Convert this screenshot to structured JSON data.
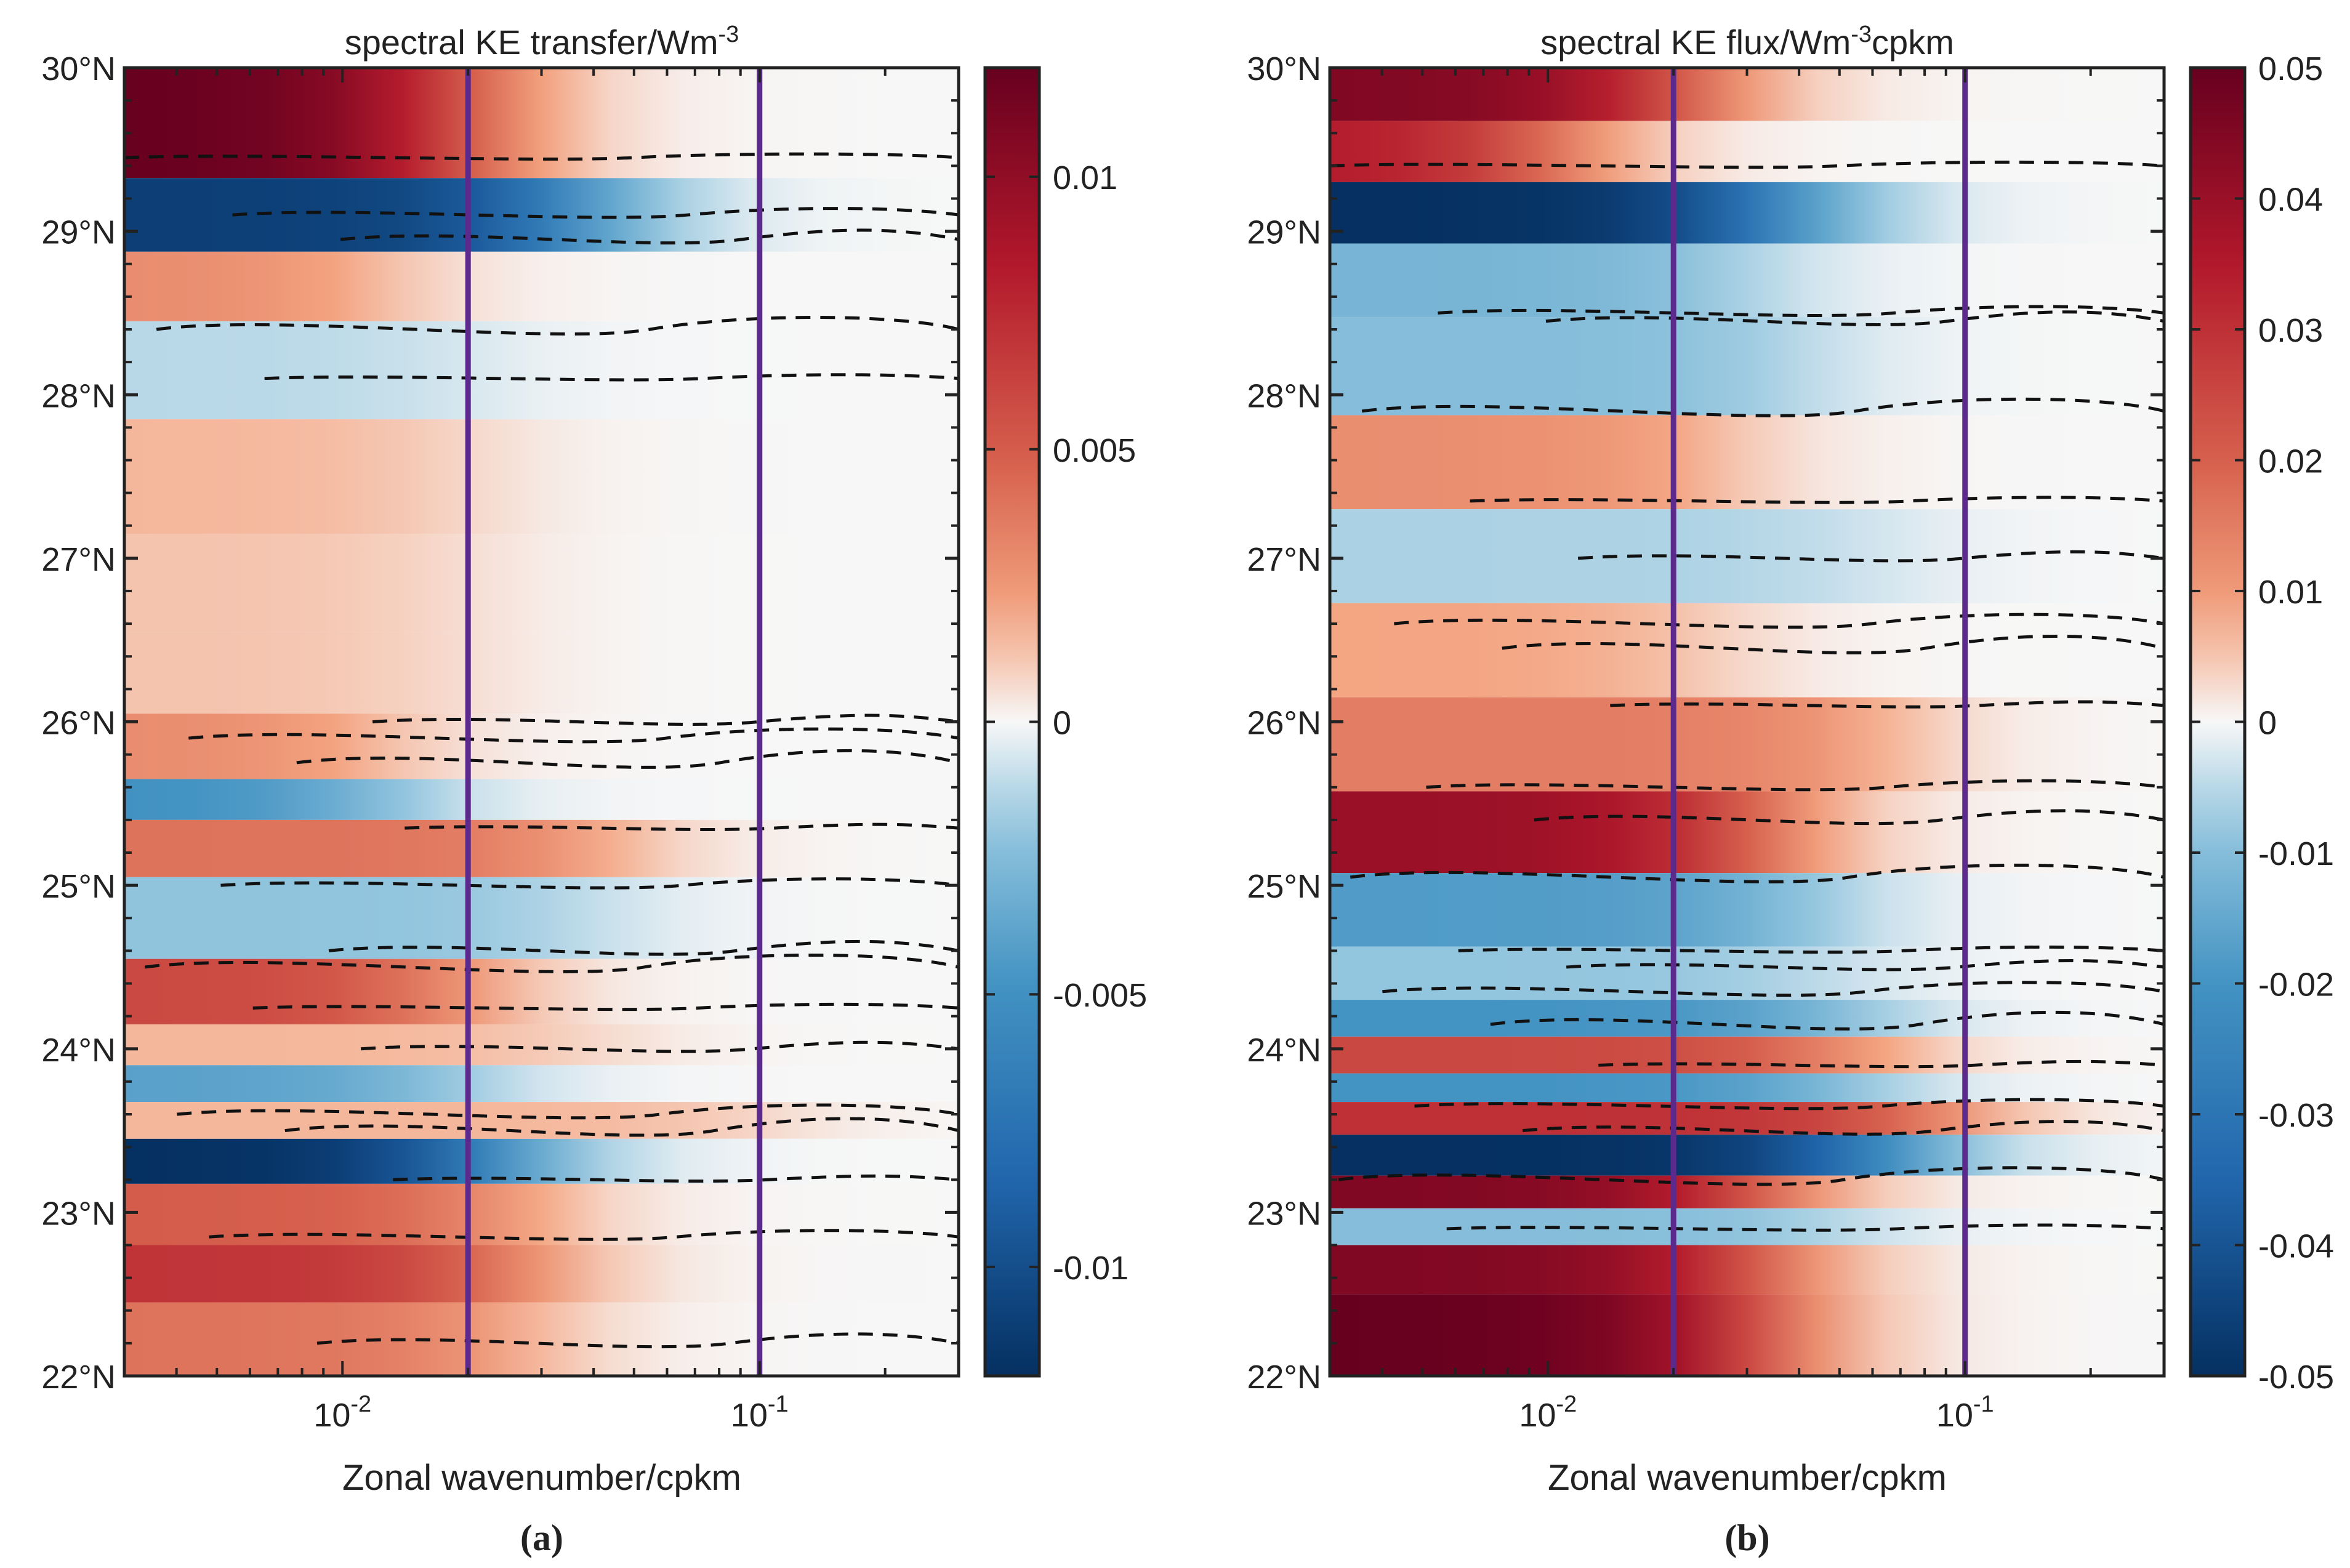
{
  "chart_data": [
    {
      "type": "heatmap",
      "panel_label": "(a)",
      "title": "spectral KE transfer/Wm",
      "title_exponent": "-3",
      "xlabel": "Zonal wavenumber/cpkm",
      "xscale": "log",
      "xlim": [
        0.003,
        0.3
      ],
      "x_ticks": [
        {
          "value": 0.01,
          "base": "10",
          "exp": "-2"
        },
        {
          "value": 0.1,
          "base": "10",
          "exp": "-1"
        }
      ],
      "ylim": [
        22,
        30
      ],
      "y_ticks": [
        "22°N",
        "23°N",
        "24°N",
        "25°N",
        "26°N",
        "27°N",
        "28°N",
        "29°N",
        "30°N"
      ],
      "colorbar": {
        "range": [
          -0.012,
          0.012
        ],
        "ticks": [
          0.01,
          0.005,
          0,
          -0.005,
          -0.01
        ],
        "tick_labels": [
          "0.01",
          "0.005",
          "0",
          "-0.005",
          "-0.01"
        ],
        "colormap": "blue-white-red"
      },
      "vertical_lines": {
        "x": [
          0.02,
          0.1
        ],
        "color": "#5b2a8c"
      },
      "contour_style": "dashed zero contour",
      "bands": [
        {
          "lat": 29.6,
          "amplitude": 0.012,
          "cutoff": 0.018
        },
        {
          "lat": 29.05,
          "amplitude": -0.011,
          "cutoff": 0.035
        },
        {
          "lat": 28.7,
          "amplitude": 0.003,
          "cutoff": 0.012
        },
        {
          "lat": 28.2,
          "amplitude": -0.0012,
          "cutoff": 0.02
        },
        {
          "lat": 27.5,
          "amplitude": 0.0015,
          "cutoff": 0.02
        },
        {
          "lat": 26.8,
          "amplitude": 0.0012,
          "cutoff": 0.02
        },
        {
          "lat": 26.3,
          "amplitude": 0.0012,
          "cutoff": 0.02
        },
        {
          "lat": 25.8,
          "amplitude": 0.003,
          "cutoff": 0.012
        },
        {
          "lat": 25.5,
          "amplitude": -0.005,
          "cutoff": 0.012
        },
        {
          "lat": 25.3,
          "amplitude": 0.004,
          "cutoff": 0.04
        },
        {
          "lat": 24.8,
          "amplitude": -0.002,
          "cutoff": 0.04
        },
        {
          "lat": 24.3,
          "amplitude": 0.006,
          "cutoff": 0.018
        },
        {
          "lat": 24.0,
          "amplitude": 0.0015,
          "cutoff": 0.04
        },
        {
          "lat": 23.8,
          "amplitude": -0.004,
          "cutoff": 0.018
        },
        {
          "lat": 23.55,
          "amplitude": 0.0015,
          "cutoff": 0.1
        },
        {
          "lat": 23.35,
          "amplitude": -0.012,
          "cutoff": 0.022
        },
        {
          "lat": 23.0,
          "amplitude": 0.005,
          "cutoff": 0.025
        },
        {
          "lat": 22.6,
          "amplitude": 0.007,
          "cutoff": 0.025
        },
        {
          "lat": 22.3,
          "amplitude": 0.004,
          "cutoff": 0.025
        }
      ],
      "contour_lats": [
        29.45,
        29.1,
        28.95,
        28.4,
        28.1,
        26.0,
        25.9,
        25.75,
        25.35,
        25.0,
        24.6,
        24.5,
        24.25,
        24.0,
        23.6,
        23.5,
        23.2,
        22.85,
        22.2
      ]
    },
    {
      "type": "heatmap",
      "panel_label": "(b)",
      "title": "spectral KE flux/Wm",
      "title_exponent": "-3",
      "title_suffix": "cpkm",
      "xlabel": "Zonal wavenumber/cpkm",
      "xscale": "log",
      "xlim": [
        0.003,
        0.3
      ],
      "x_ticks": [
        {
          "value": 0.01,
          "base": "10",
          "exp": "-2"
        },
        {
          "value": 0.1,
          "base": "10",
          "exp": "-1"
        }
      ],
      "ylim": [
        22,
        30
      ],
      "y_ticks": [
        "22°N",
        "23°N",
        "24°N",
        "25°N",
        "26°N",
        "27°N",
        "28°N",
        "29°N",
        "30°N"
      ],
      "colorbar": {
        "range": [
          -0.05,
          0.05
        ],
        "ticks": [
          0.05,
          0.04,
          0.03,
          0.02,
          0.01,
          0,
          -0.01,
          -0.02,
          -0.03,
          -0.04,
          -0.05
        ],
        "tick_labels": [
          "0.05",
          "0.04",
          "0.03",
          "0.02",
          "0.01",
          "0",
          "-0.01",
          "-0.02",
          "-0.03",
          "-0.04",
          "-0.05"
        ],
        "colormap": "blue-white-red"
      },
      "vertical_lines": {
        "x": [
          0.02,
          0.1
        ],
        "color": "#5b2a8c"
      },
      "contour_style": "dashed zero contour",
      "bands": [
        {
          "lat": 29.8,
          "amplitude": 0.045,
          "cutoff": 0.02
        },
        {
          "lat": 29.55,
          "amplitude": 0.035,
          "cutoff": 0.01
        },
        {
          "lat": 29.05,
          "amplitude": -0.05,
          "cutoff": 0.035
        },
        {
          "lat": 28.8,
          "amplitude": -0.012,
          "cutoff": 0.03
        },
        {
          "lat": 28.15,
          "amplitude": -0.01,
          "cutoff": 0.04
        },
        {
          "lat": 27.6,
          "amplitude": 0.012,
          "cutoff": 0.025
        },
        {
          "lat": 27.0,
          "amplitude": -0.006,
          "cutoff": 0.06
        },
        {
          "lat": 26.45,
          "amplitude": 0.008,
          "cutoff": 0.025
        },
        {
          "lat": 25.85,
          "amplitude": 0.015,
          "cutoff": 0.06
        },
        {
          "lat": 25.3,
          "amplitude": 0.04,
          "cutoff": 0.03
        },
        {
          "lat": 24.85,
          "amplitude": -0.018,
          "cutoff": 0.04
        },
        {
          "lat": 24.4,
          "amplitude": -0.008,
          "cutoff": 0.05
        },
        {
          "lat": 24.2,
          "amplitude": -0.02,
          "cutoff": 0.05
        },
        {
          "lat": 23.95,
          "amplitude": 0.025,
          "cutoff": 0.05
        },
        {
          "lat": 23.75,
          "amplitude": -0.02,
          "cutoff": 0.05
        },
        {
          "lat": 23.6,
          "amplitude": 0.03,
          "cutoff": 0.08
        },
        {
          "lat": 23.35,
          "amplitude": -0.05,
          "cutoff": 0.06
        },
        {
          "lat": 23.1,
          "amplitude": 0.045,
          "cutoff": 0.03
        },
        {
          "lat": 22.95,
          "amplitude": -0.01,
          "cutoff": 0.05
        },
        {
          "lat": 22.65,
          "amplitude": 0.045,
          "cutoff": 0.03
        },
        {
          "lat": 22.35,
          "amplitude": 0.05,
          "cutoff": 0.03
        }
      ],
      "contour_lats": [
        29.4,
        28.5,
        28.45,
        27.9,
        27.35,
        27.0,
        26.6,
        26.45,
        26.1,
        25.6,
        25.4,
        25.05,
        24.6,
        24.5,
        24.35,
        24.15,
        23.9,
        23.65,
        23.5,
        23.2,
        22.9
      ]
    }
  ]
}
